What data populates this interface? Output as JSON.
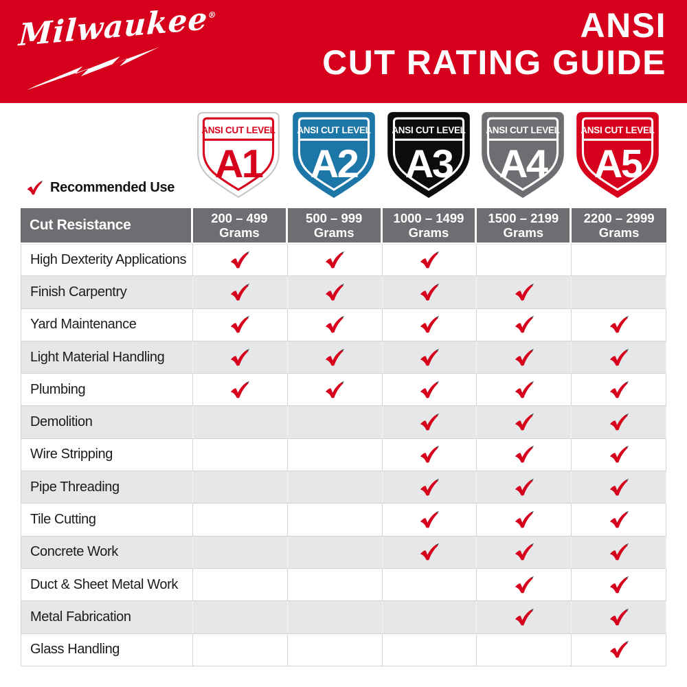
{
  "brand": {
    "logo_text": "Milwaukee",
    "registered_mark": "®"
  },
  "banner": {
    "title_line1": "ANSI",
    "title_line2": "CUT RATING GUIDE"
  },
  "legend": {
    "label": "Recommended Use"
  },
  "colors": {
    "brand_red": "#D6001C",
    "shield_blue": "#1C77A8",
    "shield_black": "#0B0C0D",
    "shield_gray": "#6D6E71",
    "header_gray": "#6D6E71",
    "alt_row_gray": "#E6E7E8",
    "check_red": "#D6001C"
  },
  "shields": [
    {
      "top_label": "ANSI CUT LEVEL",
      "level": "A1",
      "bg": "#FFFFFF",
      "fg": "#D6001C",
      "border": "#D6001C",
      "edge": "#C4C6C8"
    },
    {
      "top_label": "ANSI CUT LEVEL",
      "level": "A2",
      "bg": "#1C77A8",
      "fg": "#FFFFFF",
      "border": "#FFFFFF",
      "edge": "#1C77A8"
    },
    {
      "top_label": "ANSI CUT LEVEL",
      "level": "A3",
      "bg": "#0B0C0D",
      "fg": "#FFFFFF",
      "border": "#FFFFFF",
      "edge": "#0B0C0D"
    },
    {
      "top_label": "ANSI CUT LEVEL",
      "level": "A4",
      "bg": "#6D6E71",
      "fg": "#FFFFFF",
      "border": "#FFFFFF",
      "edge": "#6D6E71"
    },
    {
      "top_label": "ANSI CUT LEVEL",
      "level": "A5",
      "bg": "#D6001C",
      "fg": "#FFFFFF",
      "border": "#FFFFFF",
      "edge": "#D6001C"
    }
  ],
  "table": {
    "corner_header": "Cut Resistance",
    "columns": [
      {
        "level": "A1",
        "range": "200 – 499",
        "unit": "Grams"
      },
      {
        "level": "A2",
        "range": "500 – 999",
        "unit": "Grams"
      },
      {
        "level": "A3",
        "range": "1000 – 1499",
        "unit": "Grams"
      },
      {
        "level": "A4",
        "range": "1500 – 2199",
        "unit": "Grams"
      },
      {
        "level": "A5",
        "range": "2200 – 2999",
        "unit": "Grams"
      }
    ],
    "rows": [
      {
        "label": "High Dexterity Applications",
        "checks": [
          1,
          1,
          1,
          0,
          0
        ]
      },
      {
        "label": "Finish Carpentry",
        "checks": [
          1,
          1,
          1,
          1,
          0
        ]
      },
      {
        "label": "Yard Maintenance",
        "checks": [
          1,
          1,
          1,
          1,
          1
        ]
      },
      {
        "label": "Light Material Handling",
        "checks": [
          1,
          1,
          1,
          1,
          1
        ]
      },
      {
        "label": "Plumbing",
        "checks": [
          1,
          1,
          1,
          1,
          1
        ]
      },
      {
        "label": "Demolition",
        "checks": [
          0,
          0,
          1,
          1,
          1
        ]
      },
      {
        "label": "Wire Stripping",
        "checks": [
          0,
          0,
          1,
          1,
          1
        ]
      },
      {
        "label": "Pipe Threading",
        "checks": [
          0,
          0,
          1,
          1,
          1
        ]
      },
      {
        "label": "Tile Cutting",
        "checks": [
          0,
          0,
          1,
          1,
          1
        ]
      },
      {
        "label": "Concrete Work",
        "checks": [
          0,
          0,
          1,
          1,
          1
        ]
      },
      {
        "label": "Duct & Sheet Metal Work",
        "checks": [
          0,
          0,
          0,
          1,
          1
        ]
      },
      {
        "label": "Metal Fabrication",
        "checks": [
          0,
          0,
          0,
          1,
          1
        ]
      },
      {
        "label": "Glass Handling",
        "checks": [
          0,
          0,
          0,
          0,
          1
        ]
      }
    ]
  },
  "chart_data": {
    "type": "table",
    "title": "ANSI CUT RATING GUIDE",
    "row_header": "Cut Resistance",
    "columns": [
      "A1: 200 – 499 Grams",
      "A2: 500 – 999 Grams",
      "A3: 1000 – 1499 Grams",
      "A4: 1500 – 2199 Grams",
      "A5: 2200 – 2999 Grams"
    ],
    "rows": [
      "High Dexterity Applications",
      "Finish Carpentry",
      "Yard Maintenance",
      "Light Material Handling",
      "Plumbing",
      "Demolition",
      "Wire Stripping",
      "Pipe Threading",
      "Tile Cutting",
      "Concrete Work",
      "Duct & Sheet Metal Work",
      "Metal Fabrication",
      "Glass Handling"
    ],
    "matrix": [
      [
        1,
        1,
        1,
        0,
        0
      ],
      [
        1,
        1,
        1,
        1,
        0
      ],
      [
        1,
        1,
        1,
        1,
        1
      ],
      [
        1,
        1,
        1,
        1,
        1
      ],
      [
        1,
        1,
        1,
        1,
        1
      ],
      [
        0,
        0,
        1,
        1,
        1
      ],
      [
        0,
        0,
        1,
        1,
        1
      ],
      [
        0,
        0,
        1,
        1,
        1
      ],
      [
        0,
        0,
        1,
        1,
        1
      ],
      [
        0,
        0,
        1,
        1,
        1
      ],
      [
        0,
        0,
        0,
        1,
        1
      ],
      [
        0,
        0,
        0,
        1,
        1
      ],
      [
        0,
        0,
        0,
        0,
        1
      ]
    ],
    "legend_note": "check = Recommended Use"
  }
}
